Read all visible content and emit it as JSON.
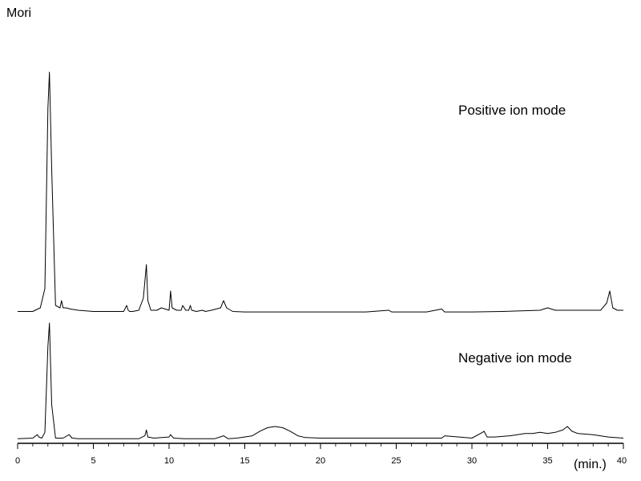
{
  "title": "Mori",
  "chart_data": {
    "type": "line",
    "title": "Mori",
    "xlabel": "(min.)",
    "ylabel": "",
    "xlim": [
      0,
      40
    ],
    "xticks": [
      0,
      5,
      10,
      15,
      20,
      25,
      30,
      35,
      40
    ],
    "grid": false,
    "series": [
      {
        "name": "Positive ion mode",
        "ylim": [
          0,
          100
        ],
        "x": [
          0.0,
          1.0,
          1.5,
          1.8,
          2.0,
          2.1,
          2.25,
          2.5,
          2.8,
          2.9,
          3.0,
          3.2,
          3.5,
          4.0,
          5.0,
          6.0,
          7.0,
          7.2,
          7.3,
          7.4,
          7.6,
          8.0,
          8.3,
          8.5,
          8.6,
          8.8,
          9.2,
          9.5,
          10.0,
          10.1,
          10.2,
          10.5,
          10.8,
          10.9,
          11.1,
          11.3,
          11.4,
          11.5,
          11.8,
          12.2,
          12.4,
          12.8,
          13.4,
          13.6,
          13.8,
          14.2,
          15.0,
          17.0,
          20.0,
          23.0,
          24.5,
          24.7,
          25.0,
          27.0,
          28.0,
          28.2,
          30.0,
          32.0,
          34.5,
          35.0,
          35.5,
          37.0,
          38.5,
          38.9,
          39.1,
          39.3,
          39.6,
          40.0
        ],
        "y": [
          0.5,
          0.5,
          2,
          10,
          85,
          100,
          60,
          3,
          2,
          5,
          2,
          2,
          1.5,
          1,
          0.5,
          0.5,
          0.5,
          3,
          1,
          0.5,
          0.5,
          1,
          6,
          20,
          5,
          1,
          1,
          2,
          1,
          9,
          2,
          1,
          1,
          3,
          1,
          1,
          3,
          1,
          0.5,
          1,
          0.5,
          1,
          2,
          5,
          2,
          0.5,
          0.3,
          0.3,
          0.3,
          0.3,
          1,
          0.3,
          0.3,
          0.3,
          1.5,
          0.3,
          0.3,
          0.5,
          1,
          2,
          1,
          1,
          1,
          4,
          9,
          2,
          1,
          1
        ]
      },
      {
        "name": "Negative ion mode",
        "ylim": [
          0,
          100
        ],
        "x": [
          0.0,
          1.0,
          1.3,
          1.4,
          1.6,
          1.8,
          2.0,
          2.1,
          2.25,
          2.5,
          3.0,
          3.4,
          3.6,
          4.0,
          6.0,
          8.0,
          8.4,
          8.5,
          8.6,
          9.0,
          10.0,
          10.1,
          10.3,
          11.0,
          13.0,
          13.6,
          13.9,
          14.5,
          15.5,
          16.0,
          16.5,
          17.0,
          17.5,
          18.0,
          18.5,
          19.0,
          20.0,
          22.0,
          25.0,
          28.0,
          28.2,
          30.0,
          30.7,
          30.8,
          31.0,
          31.5,
          32.5,
          33.0,
          33.5,
          34.0,
          34.5,
          35.0,
          35.5,
          36.0,
          36.3,
          36.6,
          37.0,
          38.0,
          39.0,
          40.0
        ],
        "y": [
          0.5,
          1,
          4,
          2,
          1,
          6,
          80,
          100,
          30,
          1,
          1,
          4,
          1,
          0.5,
          0.5,
          0.5,
          3,
          8,
          2,
          1,
          2,
          4,
          1,
          0.5,
          0.5,
          3,
          0.5,
          1,
          3,
          7,
          10,
          11,
          10,
          7,
          3,
          1.5,
          1,
          1,
          1,
          1,
          3,
          1,
          6,
          7,
          2,
          2,
          3,
          4,
          5,
          5,
          6,
          5,
          6,
          8,
          11,
          7,
          5,
          4,
          2,
          1
        ]
      }
    ]
  },
  "labels": {
    "positive": "Positive ion mode",
    "negative": "Negative ion mode"
  },
  "colors": {
    "trace": "#000000",
    "axis": "#000000",
    "background": "#ffffff"
  }
}
